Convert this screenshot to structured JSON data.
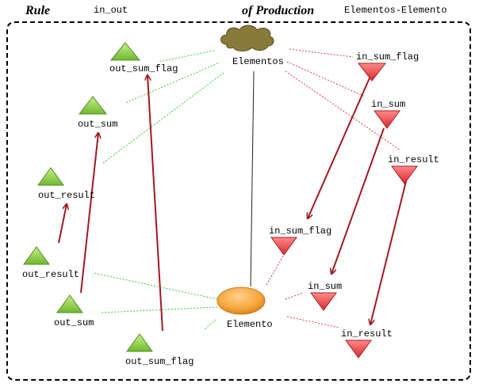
{
  "header": {
    "rule_title": "Rule",
    "rule_name": "in_out",
    "production_title": "of Production",
    "production_name": "Elementos-Elemento"
  },
  "colors": {
    "port_out": "#8fd14f",
    "port_in": "#e8474a",
    "cloud": "#8a7a3a",
    "node": "#f6a53a",
    "arrow": "#9e1b20",
    "dotted_green": "#33cc33",
    "dotted_red": "#e23a3a"
  },
  "nodes": {
    "elementos": "Elementos",
    "elemento": "Elemento"
  },
  "top_left_ports": {
    "out_sum_flag": "out_sum_flag",
    "out_sum": "out_sum",
    "out_result": "out_result"
  },
  "bottom_left_ports": {
    "out_result": "out_result",
    "out_sum": "out_sum",
    "out_sum_flag": "out_sum_flag"
  },
  "top_right_ports": {
    "in_sum_flag": "in_sum_flag",
    "in_sum": "in_sum",
    "in_result": "in_result"
  },
  "bottom_right_ports": {
    "in_sum_flag": "in_sum_flag",
    "in_sum": "in_sum",
    "in_result": "in_result"
  }
}
